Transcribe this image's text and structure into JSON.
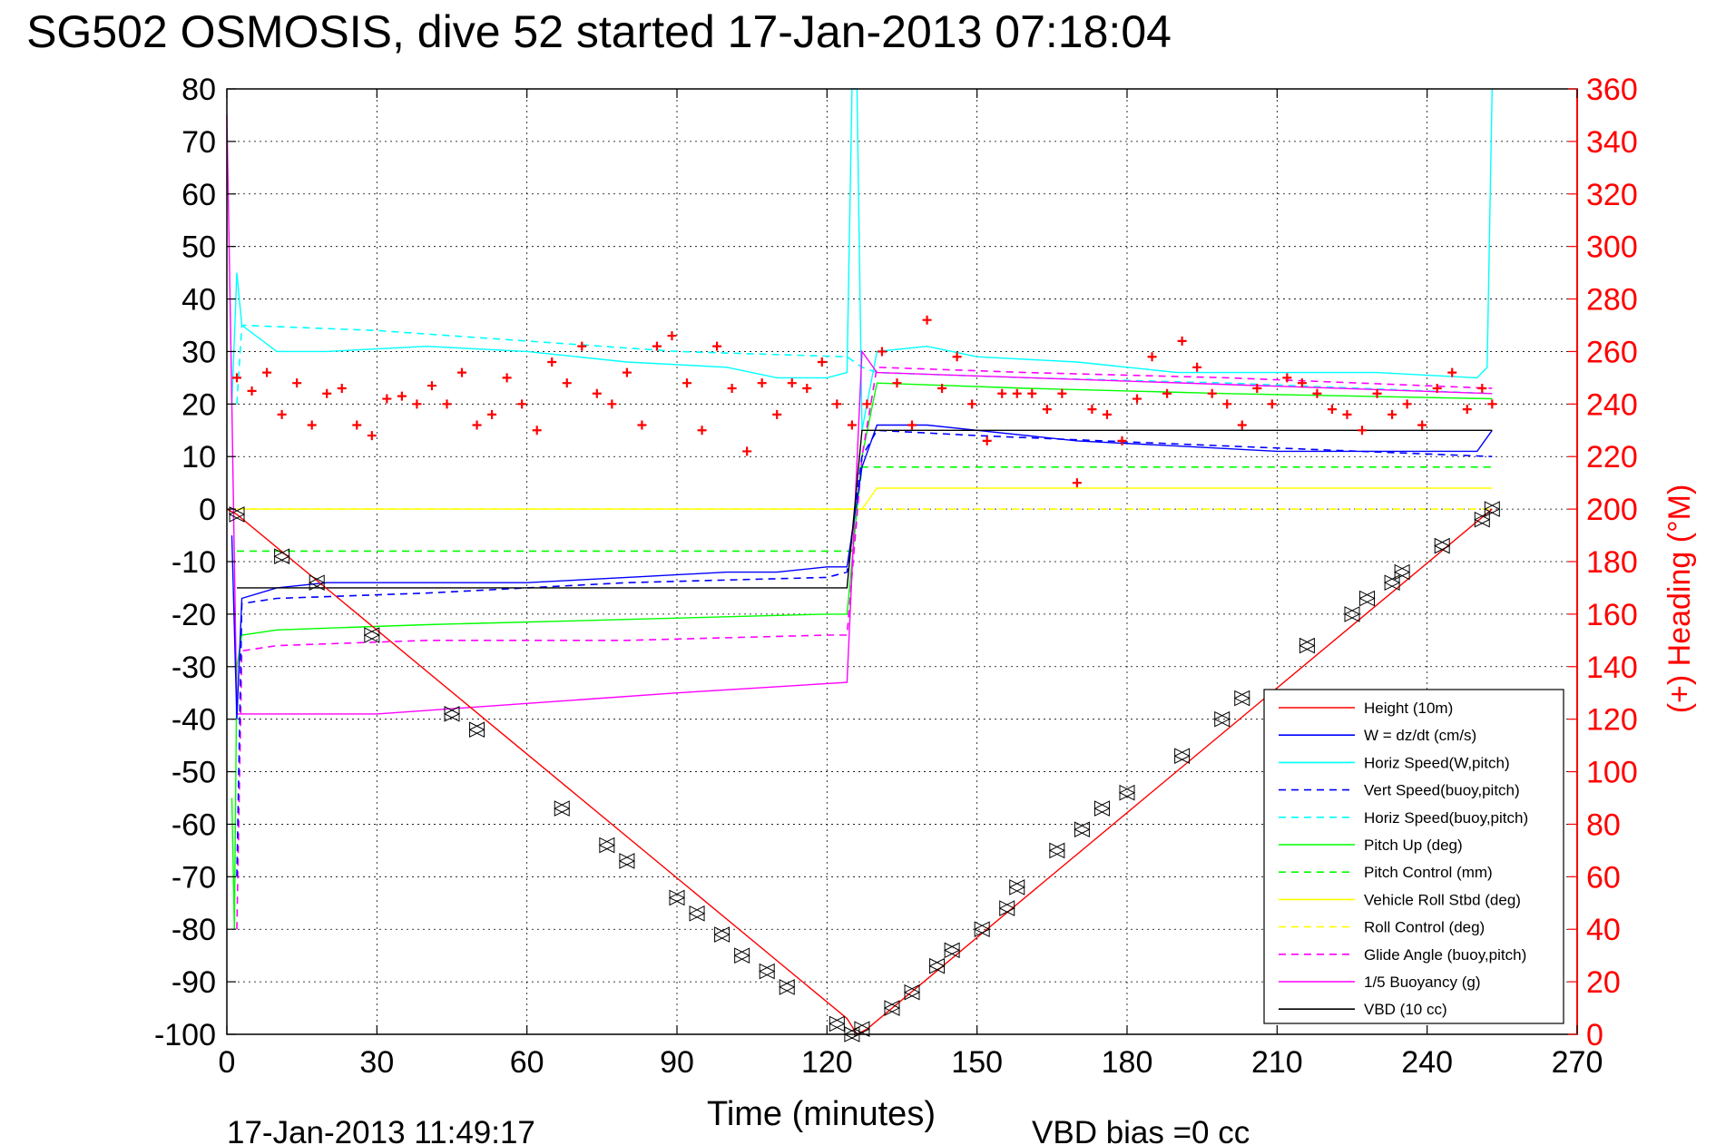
{
  "chart_data": {
    "type": "line",
    "title": "SG502 OSMOSIS, dive 52 started 17-Jan-2013 07:18:04",
    "xlabel": "Time (minutes)",
    "ylabel_right": "(+) Heading (°M)",
    "footer_left": "17-Jan-2013 11:49:17",
    "footer_right": "VBD bias =0 cc",
    "xlim": [
      0,
      270
    ],
    "ylim": [
      -100,
      80
    ],
    "ylim_right": [
      0,
      360
    ],
    "x_ticks": [
      "0",
      "30",
      "60",
      "90",
      "120",
      "150",
      "180",
      "210",
      "240",
      "270"
    ],
    "y_ticks": [
      "80",
      "70",
      "60",
      "50",
      "40",
      "30",
      "20",
      "10",
      "0",
      "-10",
      "-20",
      "-30",
      "-40",
      "-50",
      "-60",
      "-70",
      "-80",
      "-90",
      "-100"
    ],
    "y_ticks_right": [
      "360",
      "340",
      "320",
      "300",
      "280",
      "260",
      "240",
      "220",
      "200",
      "180",
      "160",
      "140",
      "120",
      "100",
      "80",
      "60",
      "40",
      "20",
      "0"
    ],
    "grid": true,
    "legend_position": "bottom-right",
    "legend": [
      {
        "label": "Height (10m)",
        "color": "#ff0000",
        "dash": false
      },
      {
        "label": "W = dz/dt (cm/s)",
        "color": "#0000ff",
        "dash": false
      },
      {
        "label": "Horiz Speed(W,pitch)",
        "color": "#00ffff",
        "dash": false
      },
      {
        "label": "Vert Speed(buoy,pitch)",
        "color": "#0000ff",
        "dash": true
      },
      {
        "label": "Horiz Speed(buoy,pitch)",
        "color": "#00ffff",
        "dash": true
      },
      {
        "label": "Pitch Up (deg)",
        "color": "#00ff00",
        "dash": false
      },
      {
        "label": "Pitch Control (mm)",
        "color": "#00ff00",
        "dash": true
      },
      {
        "label": "Vehicle Roll Stbd (deg)",
        "color": "#ffff00",
        "dash": false
      },
      {
        "label": "Roll Control (deg)",
        "color": "#ffff00",
        "dash": true
      },
      {
        "label": "Glide Angle (buoy,pitch)",
        "color": "#ff00ff",
        "dash": true
      },
      {
        "label": "1/5 Buoyancy (g)",
        "color": "#ff00ff",
        "dash": false
      },
      {
        "label": "VBD (10 cc)",
        "color": "#000000",
        "dash": false
      }
    ],
    "series": [
      {
        "name": "Height (10m)",
        "color": "#ff0000",
        "dash": false,
        "x": [
          0,
          2,
          124,
          126,
          128,
          253
        ],
        "y": [
          0,
          -1,
          -97,
          -100,
          -99,
          0
        ]
      },
      {
        "name": "W = dz/dt (cm/s)",
        "color": "#0000ff",
        "dash": false,
        "x": [
          1,
          2,
          3,
          10,
          20,
          40,
          60,
          80,
          100,
          110,
          120,
          124,
          127,
          130,
          140,
          150,
          170,
          190,
          210,
          230,
          250,
          253
        ],
        "y": [
          -5,
          -40,
          -17,
          -15,
          -14,
          -14,
          -14,
          -13,
          -12,
          -12,
          -11,
          -11,
          8,
          16,
          16,
          15,
          13,
          12,
          11,
          11,
          11,
          15
        ]
      },
      {
        "name": "Horiz Speed(W,pitch)",
        "color": "#00ffff",
        "dash": false,
        "x": [
          1,
          2,
          3,
          10,
          20,
          40,
          60,
          80,
          100,
          110,
          120,
          124,
          125,
          126,
          127,
          130,
          140,
          150,
          170,
          190,
          210,
          230,
          250,
          252,
          253
        ],
        "y": [
          20,
          45,
          35,
          30,
          30,
          31,
          30,
          28,
          27,
          25,
          25,
          26,
          80,
          80,
          15,
          30,
          31,
          29,
          28,
          26,
          26,
          26,
          25,
          27,
          80
        ]
      },
      {
        "name": "Vert Speed(buoy,pitch)",
        "color": "#0000ff",
        "dash": true,
        "x": [
          2,
          3,
          10,
          40,
          80,
          120,
          124,
          127,
          130,
          150,
          200,
          253
        ],
        "y": [
          -70,
          -18,
          -17,
          -16,
          -14,
          -13,
          -12,
          10,
          15,
          14,
          12,
          10
        ]
      },
      {
        "name": "Horiz Speed(buoy,pitch)",
        "color": "#00ffff",
        "dash": true,
        "x": [
          2,
          3,
          30,
          60,
          90,
          124,
          127,
          130,
          160,
          200,
          253
        ],
        "y": [
          20,
          35,
          34,
          32,
          30,
          29,
          27,
          26,
          25,
          24,
          22
        ]
      },
      {
        "name": "Pitch Up (deg)",
        "color": "#00ff00",
        "dash": false,
        "x": [
          1,
          1.5,
          2,
          3,
          10,
          40,
          80,
          120,
          124,
          127,
          130,
          160,
          200,
          253
        ],
        "y": [
          -55,
          -80,
          -30,
          -24,
          -23,
          -22,
          -21,
          -20,
          -20,
          10,
          24,
          23,
          22,
          21
        ]
      },
      {
        "name": "Pitch Control (mm)",
        "color": "#00ff00",
        "dash": true,
        "x": [
          2,
          3,
          124,
          125,
          127,
          253
        ],
        "y": [
          -8,
          -8,
          -8,
          -8,
          8,
          8
        ]
      },
      {
        "name": "Vehicle Roll Stbd (deg)",
        "color": "#ffff00",
        "dash": false,
        "x": [
          2,
          10,
          20,
          30,
          40,
          50,
          60,
          70,
          80,
          90,
          100,
          110,
          120,
          124,
          127,
          130,
          140,
          150,
          170,
          190,
          210,
          230,
          253
        ],
        "y": [
          0,
          0,
          0,
          0,
          0,
          0,
          0,
          0,
          0,
          0,
          0,
          0,
          0,
          0,
          0,
          4,
          4,
          4,
          4,
          4,
          4,
          4,
          4
        ]
      },
      {
        "name": "Roll Control (deg)",
        "color": "#ffff00",
        "dash": true,
        "x": [
          2,
          124,
          127,
          253
        ],
        "y": [
          0,
          0,
          0,
          0
        ]
      },
      {
        "name": "Glide Angle (buoy,pitch)",
        "color": "#ff00ff",
        "dash": true,
        "x": [
          2,
          3,
          10,
          40,
          80,
          120,
          124,
          127,
          130,
          160,
          200,
          253
        ],
        "y": [
          -80,
          -27,
          -26,
          -25,
          -25,
          -24,
          -24,
          10,
          27,
          26,
          25,
          23
        ]
      },
      {
        "name": "1/5 Buoyancy (g)",
        "color": "#ff00ff",
        "dash": false,
        "x": [
          0,
          1,
          2,
          30,
          60,
          90,
          124,
          127,
          130,
          253
        ],
        "y": [
          75,
          20,
          -39,
          -39,
          -37,
          -35,
          -33,
          30,
          26,
          22
        ]
      },
      {
        "name": "VBD (10 cc)",
        "color": "#000000",
        "dash": false,
        "x": [
          2,
          124,
          127,
          253
        ],
        "y": [
          -15,
          -15,
          15,
          15
        ]
      }
    ],
    "heading_points": {
      "name": "(+) Heading (°M)",
      "color": "#ff0000",
      "axis": "right",
      "x": [
        2,
        5,
        8,
        11,
        14,
        17,
        20,
        23,
        26,
        29,
        32,
        35,
        38,
        41,
        44,
        47,
        50,
        53,
        56,
        59,
        62,
        65,
        68,
        71,
        74,
        77,
        80,
        83,
        86,
        89,
        92,
        95,
        98,
        101,
        104,
        107,
        110,
        113,
        116,
        119,
        122,
        125,
        128,
        131,
        134,
        137,
        140,
        143,
        146,
        149,
        152,
        155,
        158,
        161,
        164,
        167,
        170,
        173,
        176,
        179,
        182,
        185,
        188,
        191,
        194,
        197,
        200,
        203,
        206,
        209,
        212,
        215,
        218,
        221,
        224,
        227,
        230,
        233,
        236,
        239,
        242,
        245,
        248,
        251,
        253
      ],
      "y": [
        250,
        245,
        252,
        236,
        248,
        232,
        244,
        246,
        232,
        228,
        242,
        243,
        240,
        247,
        240,
        252,
        232,
        236,
        250,
        240,
        230,
        256,
        248,
        262,
        244,
        240,
        252,
        232,
        262,
        266,
        248,
        230,
        262,
        246,
        222,
        248,
        236,
        248,
        246,
        256,
        240,
        232,
        240,
        260,
        248,
        232,
        272,
        246,
        258,
        240,
        226,
        244,
        244,
        244,
        238,
        244,
        210,
        238,
        236,
        226,
        242,
        258,
        244,
        264,
        254,
        244,
        240,
        232,
        246,
        240,
        250,
        248,
        244,
        238,
        236,
        230,
        244,
        236,
        240,
        232,
        246,
        252,
        238,
        246,
        240
      ]
    },
    "depth_markers": {
      "x": [
        2,
        11,
        18,
        29,
        45,
        50,
        67,
        76,
        80,
        90,
        94,
        99,
        103,
        108,
        112,
        122,
        125,
        127,
        133,
        137,
        142,
        145,
        151,
        156,
        158,
        166,
        171,
        175,
        180,
        191,
        199,
        203,
        216,
        225,
        228,
        233,
        235,
        243,
        251,
        253
      ],
      "y": [
        -1,
        -9,
        -14,
        -24,
        -39,
        -42,
        -57,
        -64,
        -67,
        -74,
        -77,
        -81,
        -85,
        -88,
        -91,
        -98,
        -100,
        -99,
        -95,
        -92,
        -87,
        -84,
        -80,
        -76,
        -72,
        -65,
        -61,
        -57,
        -54,
        -47,
        -40,
        -36,
        -26,
        -20,
        -17,
        -14,
        -12,
        -7,
        -2,
        0
      ]
    }
  }
}
